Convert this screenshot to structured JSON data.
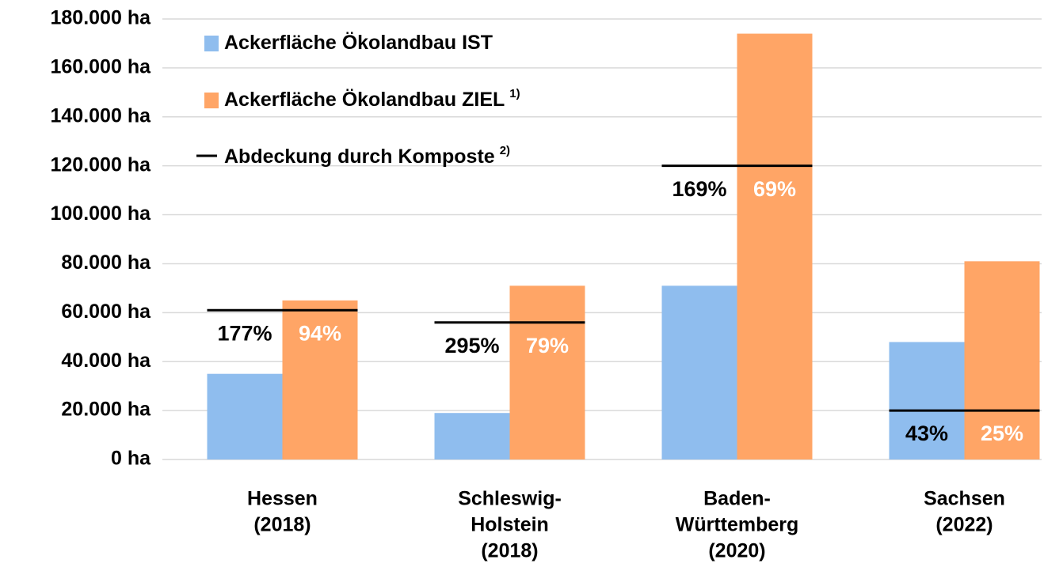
{
  "chart_data": {
    "type": "bar",
    "categories": [
      [
        "Hessen",
        "(2018)"
      ],
      [
        "Schleswig-",
        "Holstein",
        "(2018)"
      ],
      [
        "Baden-",
        "Württemberg",
        "(2020)"
      ],
      [
        "Sachsen",
        "(2022)"
      ]
    ],
    "series": [
      {
        "name": "Ackerfläche Ökolandbau IST",
        "color": "#8fbdee",
        "values": [
          35000,
          19000,
          71000,
          48000
        ],
        "value_labels": [
          "177%",
          "295%",
          "169%",
          "43%"
        ]
      },
      {
        "name": "Ackerfläche Ökolandbau ZIEL",
        "footnote": "1)",
        "color": "#ffa566",
        "values": [
          65000,
          71000,
          174000,
          81000
        ],
        "value_labels": [
          "94%",
          "79%",
          "69%",
          "25%"
        ]
      },
      {
        "name": "Abdeckung durch Komposte",
        "footnote": "2)",
        "color": "#000000",
        "type": "marker",
        "values": [
          61000,
          56000,
          120000,
          20000
        ]
      }
    ],
    "ylim": [
      0,
      180000
    ],
    "yticks": [
      {
        "value": 0,
        "label": "0 ha"
      },
      {
        "value": 20000,
        "label": "20.000 ha"
      },
      {
        "value": 40000,
        "label": "40.000 ha"
      },
      {
        "value": 60000,
        "label": "60.000 ha"
      },
      {
        "value": 80000,
        "label": "80.000 ha"
      },
      {
        "value": 100000,
        "label": "100.000 ha"
      },
      {
        "value": 120000,
        "label": "120.000 ha"
      },
      {
        "value": 140000,
        "label": "140.000 ha"
      },
      {
        "value": 160000,
        "label": "160.000 ha"
      },
      {
        "value": 180000,
        "label": "180.000 ha"
      }
    ],
    "grid": true,
    "legend": "upper left"
  }
}
